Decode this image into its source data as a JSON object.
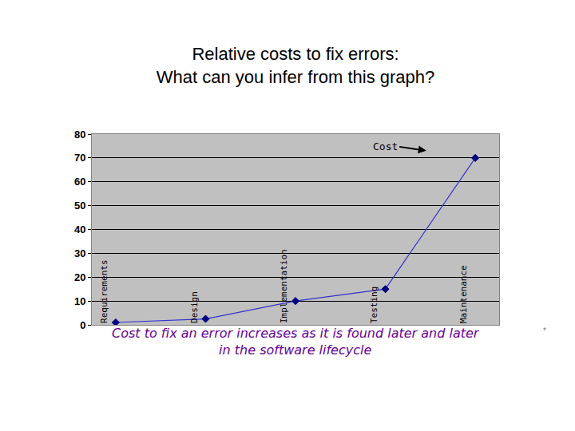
{
  "chart_data": {
    "type": "line",
    "title": "Relative costs to fix errors:\nWhat can you infer from this graph?",
    "categories": [
      "Requirements",
      "Design",
      "Implementation",
      "Testing",
      "Maintenance"
    ],
    "series": [
      {
        "name": "Cost",
        "color": "#3333cc",
        "marker": "diamond",
        "values": [
          1,
          2.5,
          10,
          15,
          70
        ]
      }
    ],
    "ylim": [
      0,
      80
    ],
    "yticks": [
      0,
      10,
      20,
      30,
      40,
      50,
      60,
      70,
      80
    ],
    "grid": true,
    "tick_labels": "y",
    "caption": "Cost to fix an error increases as it is found later and later\nin the software lifecycle",
    "footnote": "*"
  }
}
